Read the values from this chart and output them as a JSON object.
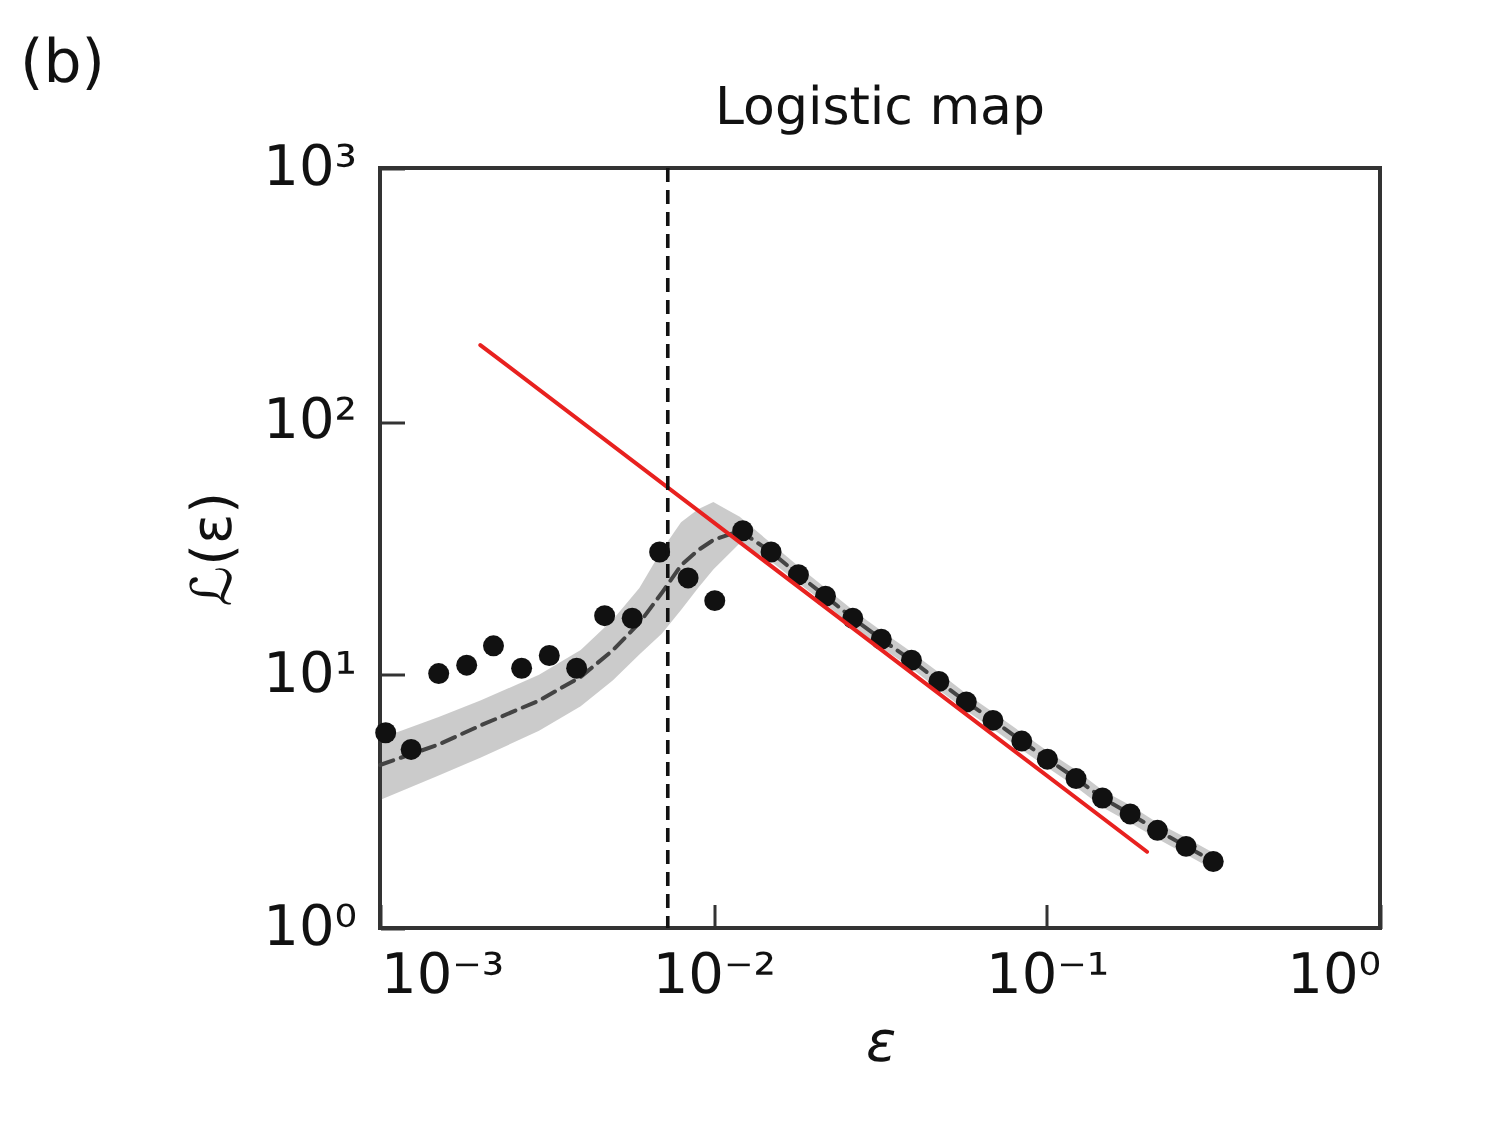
{
  "chart_data": {
    "type": "scatter",
    "title": "Logistic map",
    "xlabel": "ε",
    "ylabel": "ℒ(ε)",
    "annotations": [
      "(b)"
    ],
    "log": "xy",
    "grid": false,
    "xlim": [
      0.001,
      1
    ],
    "ylim": [
      1,
      1000
    ],
    "xticks": [
      {
        "value": 0.001,
        "label": "10⁻³"
      },
      {
        "value": 0.01,
        "label": "10⁻²"
      },
      {
        "value": 0.1,
        "label": "10⁻¹"
      },
      {
        "value": 1,
        "label": "10⁰"
      }
    ],
    "yticks": [
      {
        "value": 1,
        "label": "10⁰"
      },
      {
        "value": 10,
        "label": "10¹"
      },
      {
        "value": 100,
        "label": "10²"
      },
      {
        "value": 1000,
        "label": "10³"
      }
    ],
    "ref_lines": [
      {
        "axis": "x",
        "value": 0.0073,
        "color": "#111111",
        "line_style": "dashed"
      }
    ],
    "series": [
      {
        "type": "line",
        "color": "#444444",
        "line_style": "dashed",
        "marker": "none",
        "x": [
          0.001,
          0.0015,
          0.002,
          0.003,
          0.004,
          0.005,
          0.006,
          0.007,
          0.008,
          0.009,
          0.01,
          0.012,
          0.0149,
          0.018,
          0.0217,
          0.0262,
          0.0319,
          0.0393,
          0.0475,
          0.0574,
          0.069,
          0.0842,
          0.1005,
          0.1225,
          0.147,
          0.178,
          0.215,
          0.262,
          0.316
        ],
        "values": [
          4.4,
          5.3,
          6.3,
          7.9,
          9.8,
          12.5,
          16,
          21,
          27,
          31,
          34,
          37,
          30.5,
          24.8,
          20.4,
          16.7,
          13.8,
          11.4,
          9.4,
          7.8,
          6.6,
          5.47,
          4.64,
          3.89,
          3.26,
          2.82,
          2.43,
          2.1,
          1.83
        ],
        "lower": [
          3.2,
          4.0,
          4.7,
          6.0,
          7.5,
          9.5,
          12,
          14.5,
          18,
          22,
          26,
          33,
          28,
          23,
          19,
          15.5,
          12.8,
          10.6,
          8.7,
          7.2,
          6.1,
          5.05,
          4.3,
          3.6,
          3.0,
          2.6,
          2.25,
          1.95,
          1.7
        ],
        "upper": [
          5.6,
          6.8,
          7.9,
          10,
          12.5,
          16.5,
          22,
          31,
          40,
          45,
          48,
          42,
          33,
          26.8,
          22,
          18,
          14.9,
          12.3,
          10.2,
          8.4,
          7.1,
          5.9,
          5.0,
          4.2,
          3.5,
          3.05,
          2.6,
          2.27,
          1.98
        ]
      },
      {
        "type": "scatter",
        "color": "#111111",
        "marker": "circle",
        "x": [
          0.00104,
          0.00124,
          0.0015,
          0.00182,
          0.00219,
          0.00266,
          0.00322,
          0.00389,
          0.00472,
          0.00571,
          0.0069,
          0.0084,
          0.0101,
          0.01225,
          0.0149,
          0.018,
          0.0217,
          0.0262,
          0.0319,
          0.0393,
          0.0475,
          0.0574,
          0.069,
          0.0842,
          0.1005,
          0.1225,
          0.147,
          0.178,
          0.215,
          0.262,
          0.316
        ],
        "values": [
          5.9,
          5.07,
          10.1,
          10.9,
          13.0,
          10.6,
          11.9,
          10.6,
          17.1,
          16.7,
          30.5,
          24.1,
          19.6,
          37.0,
          30.5,
          24.8,
          20.4,
          16.7,
          13.8,
          11.4,
          9.4,
          7.8,
          6.6,
          5.47,
          4.64,
          3.89,
          3.26,
          2.82,
          2.43,
          2.1,
          1.83
        ]
      },
      {
        "type": "line",
        "color": "#e8211f",
        "line_style": "solid",
        "marker": "none",
        "x": [
          0.002,
          0.2
        ],
        "values": [
          200,
          2
        ]
      }
    ]
  }
}
